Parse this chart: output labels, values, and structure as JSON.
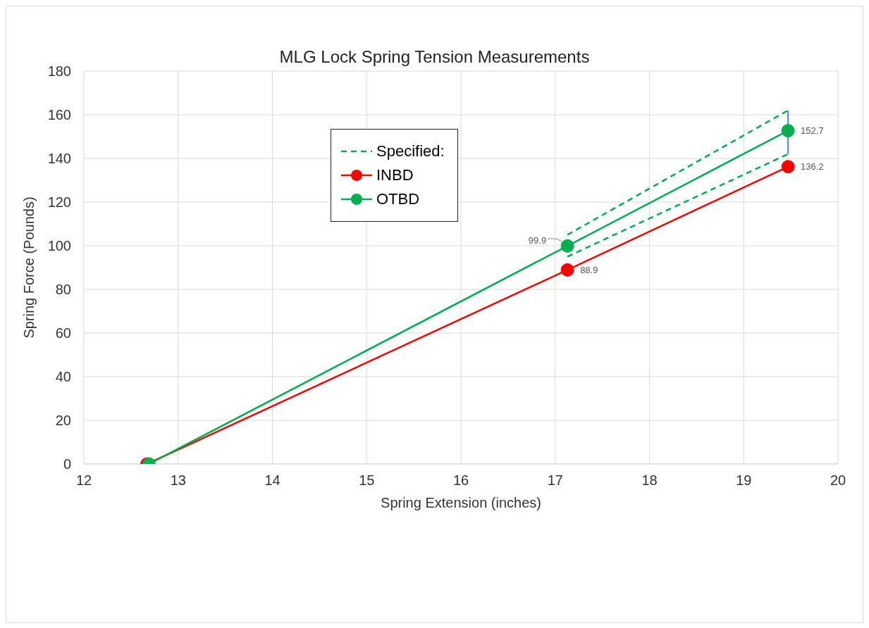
{
  "chart_data": {
    "type": "line",
    "title": "MLG Lock Spring Tension  Measurements",
    "xlabel": "Spring Extension (inches)",
    "ylabel": "Spring Force (Pounds)",
    "xlim": [
      12,
      20
    ],
    "xticks": [
      12,
      13,
      14,
      15,
      16,
      17,
      18,
      19,
      20
    ],
    "ylim": [
      0,
      180
    ],
    "yticks": [
      0,
      20,
      40,
      60,
      80,
      100,
      120,
      140,
      160,
      180
    ],
    "grid": true,
    "legend": "top",
    "marker": "circle",
    "series": [
      {
        "name": "Specified:",
        "color": "#00b050",
        "x": [
          17.13,
          19.47
        ],
        "values": [
          105,
          162
        ],
        "line_style": "dashed",
        "marker": "none"
      },
      {
        "color": "#00b050",
        "x": [
          17.13,
          19.47
        ],
        "values": [
          95,
          142
        ],
        "line_style": "dashed",
        "marker": "none"
      },
      {
        "color": "#5b9bd5",
        "x": [
          19.47,
          19.47
        ],
        "values": [
          142,
          162
        ],
        "line_style": "solid",
        "marker": "none"
      },
      {
        "name": "INBD",
        "color": "#ff0000",
        "x": [
          12.67,
          17.13,
          19.47
        ],
        "values": [
          0,
          88.9,
          136.2
        ],
        "value_labels": [
          null,
          "88.9",
          "136.2"
        ],
        "line_style": "solid"
      },
      {
        "name": "OTBD",
        "color": "#00b050",
        "x": [
          12.69,
          17.13,
          19.47
        ],
        "values": [
          0,
          99.9,
          152.7
        ],
        "value_labels": [
          null,
          "99.9",
          "152.7"
        ],
        "line_style": "solid"
      }
    ]
  }
}
